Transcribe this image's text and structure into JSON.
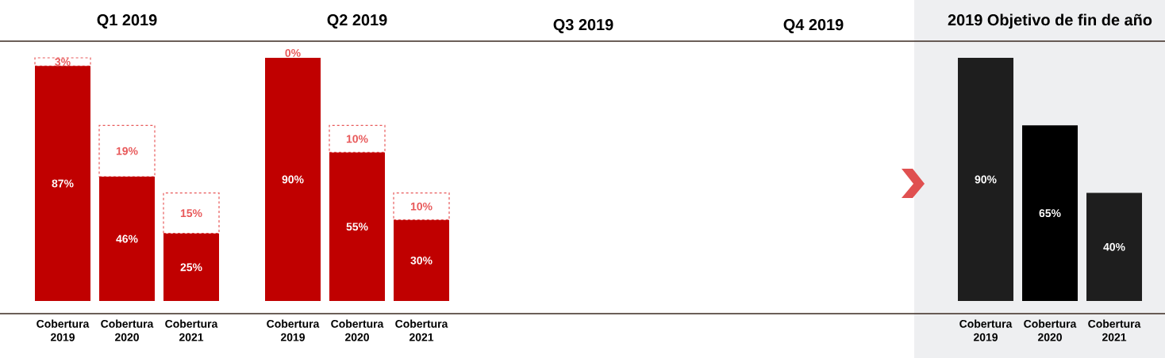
{
  "chart_data": [
    {
      "type": "bar",
      "title": "Q1 2019",
      "categories": [
        "Cobertura 2019",
        "Cobertura 2020",
        "Cobertura 2021"
      ],
      "stacked": true,
      "tick_labels": "x",
      "series": [
        {
          "color": "#c00000",
          "values": [
            87,
            46,
            25
          ],
          "value_labels": [
            "87%",
            "46%",
            "25%"
          ]
        },
        {
          "color": "#e8595a",
          "line_style": "dashed",
          "values": [
            3,
            19,
            15
          ],
          "value_labels": [
            "3%",
            "19%",
            "15%"
          ]
        }
      ]
    },
    {
      "type": "bar",
      "title": "Q2 2019",
      "categories": [
        "Cobertura 2019",
        "Cobertura 2020",
        "Cobertura 2021"
      ],
      "stacked": true,
      "tick_labels": "x",
      "series": [
        {
          "color": "#c00000",
          "values": [
            90,
            55,
            30
          ],
          "value_labels": [
            "90%",
            "55%",
            "30%"
          ]
        },
        {
          "color": "#e8595a",
          "line_style": "dashed",
          "values": [
            0,
            10,
            10
          ],
          "value_labels": [
            "0%",
            "10%",
            "10%"
          ]
        }
      ]
    },
    {
      "type": "other",
      "title": "Q3 2019"
    },
    {
      "type": "other",
      "title": "Q4 2019"
    },
    {
      "type": "bar",
      "title": "2019 Objetivo de fin de año",
      "categories": [
        "Cobertura 2019",
        "Cobertura 2020",
        "Cobertura 2021"
      ],
      "tick_labels": "x",
      "values": [
        90,
        65,
        40
      ],
      "colors": [
        "#1e1e1e",
        "#000000",
        "#1e1e1e"
      ],
      "value_labels": [
        "90%",
        "65%",
        "40%"
      ]
    }
  ]
}
